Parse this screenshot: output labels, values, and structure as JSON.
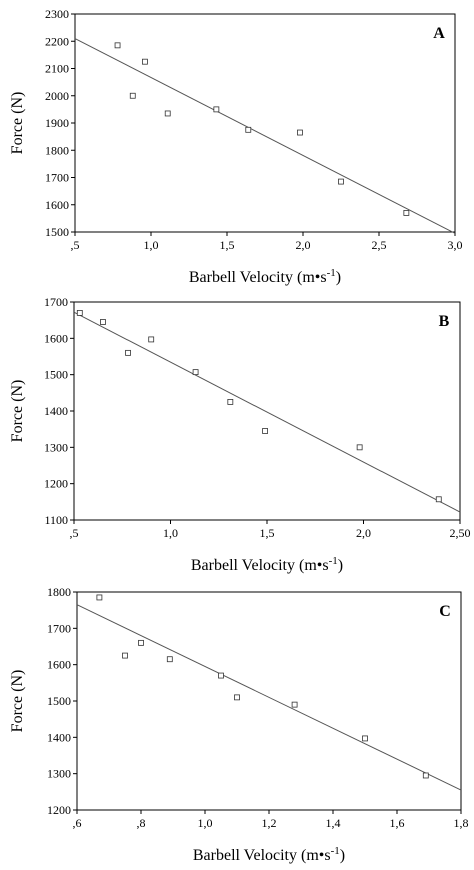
{
  "chart_data": [
    {
      "type": "scatter",
      "panel_label": "A",
      "xlabel": "Barbell Velocity (m•s",
      "xlabel_sup": "-1",
      "xlabel_close": ")",
      "ylabel": "Force (N)",
      "xlim": [
        0.5,
        3.0
      ],
      "ylim": [
        1500,
        2300
      ],
      "x_ticks": [
        0.5,
        1.0,
        1.5,
        2.0,
        2.5,
        3.0
      ],
      "x_tick_labels": [
        ",5",
        "1,0",
        "1,5",
        "2,0",
        "2,5",
        "3,0"
      ],
      "y_ticks": [
        1500,
        1600,
        1700,
        1800,
        1900,
        2000,
        2100,
        2200,
        2300
      ],
      "y_tick_labels": [
        "1500",
        "1600",
        "1700",
        "1800",
        "1900",
        "2000",
        "2100",
        "2200",
        "2300"
      ],
      "points": [
        {
          "x": 0.78,
          "y": 2185
        },
        {
          "x": 0.88,
          "y": 2000
        },
        {
          "x": 0.96,
          "y": 2125
        },
        {
          "x": 1.11,
          "y": 1935
        },
        {
          "x": 1.43,
          "y": 1950
        },
        {
          "x": 1.64,
          "y": 1875
        },
        {
          "x": 1.98,
          "y": 1865
        },
        {
          "x": 2.25,
          "y": 1685
        },
        {
          "x": 2.68,
          "y": 1570
        }
      ],
      "fit_line": [
        {
          "x": 0.5,
          "y": 2210
        },
        {
          "x": 3.0,
          "y": 1495
        }
      ]
    },
    {
      "type": "scatter",
      "panel_label": "B",
      "xlabel": "Barbell Velocity (m•s",
      "xlabel_sup": "-1",
      "xlabel_close": ")",
      "ylabel": "Force (N)",
      "xlim": [
        0.5,
        2.5
      ],
      "ylim": [
        1100,
        1700
      ],
      "x_ticks": [
        0.5,
        1.0,
        1.5,
        2.0,
        2.5
      ],
      "x_tick_labels": [
        ",5",
        "1,0",
        "1,5",
        "2,0",
        "2,50"
      ],
      "y_ticks": [
        1100,
        1200,
        1300,
        1400,
        1500,
        1600,
        1700
      ],
      "y_tick_labels": [
        "1100",
        "1200",
        "1300",
        "1400",
        "1500",
        "1600",
        "1700"
      ],
      "points": [
        {
          "x": 0.53,
          "y": 1670
        },
        {
          "x": 0.65,
          "y": 1645
        },
        {
          "x": 0.78,
          "y": 1560
        },
        {
          "x": 0.9,
          "y": 1597
        },
        {
          "x": 1.13,
          "y": 1507
        },
        {
          "x": 1.31,
          "y": 1425
        },
        {
          "x": 1.49,
          "y": 1345
        },
        {
          "x": 1.98,
          "y": 1300
        },
        {
          "x": 2.39,
          "y": 1157
        }
      ],
      "fit_line": [
        {
          "x": 0.5,
          "y": 1672
        },
        {
          "x": 2.5,
          "y": 1122
        }
      ]
    },
    {
      "type": "scatter",
      "panel_label": "C",
      "xlabel": "Barbell Velocity (m•s",
      "xlabel_sup": "-1",
      "xlabel_close": ")",
      "ylabel": "Force (N)",
      "xlim": [
        0.6,
        1.8
      ],
      "ylim": [
        1200,
        1800
      ],
      "x_ticks": [
        0.6,
        0.8,
        1.0,
        1.2,
        1.4,
        1.6,
        1.8
      ],
      "x_tick_labels": [
        ",6",
        ",8",
        "1,0",
        "1,2",
        "1,4",
        "1,6",
        "1,8"
      ],
      "y_ticks": [
        1200,
        1300,
        1400,
        1500,
        1600,
        1700,
        1800
      ],
      "y_tick_labels": [
        "1200",
        "1300",
        "1400",
        "1500",
        "1600",
        "1700",
        "1800"
      ],
      "points": [
        {
          "x": 0.67,
          "y": 1785
        },
        {
          "x": 0.75,
          "y": 1625
        },
        {
          "x": 0.8,
          "y": 1660
        },
        {
          "x": 0.89,
          "y": 1615
        },
        {
          "x": 1.05,
          "y": 1570
        },
        {
          "x": 1.1,
          "y": 1510
        },
        {
          "x": 1.28,
          "y": 1490
        },
        {
          "x": 1.5,
          "y": 1397
        },
        {
          "x": 1.69,
          "y": 1295
        }
      ],
      "fit_line": [
        {
          "x": 0.6,
          "y": 1765
        },
        {
          "x": 1.8,
          "y": 1255
        }
      ]
    }
  ]
}
